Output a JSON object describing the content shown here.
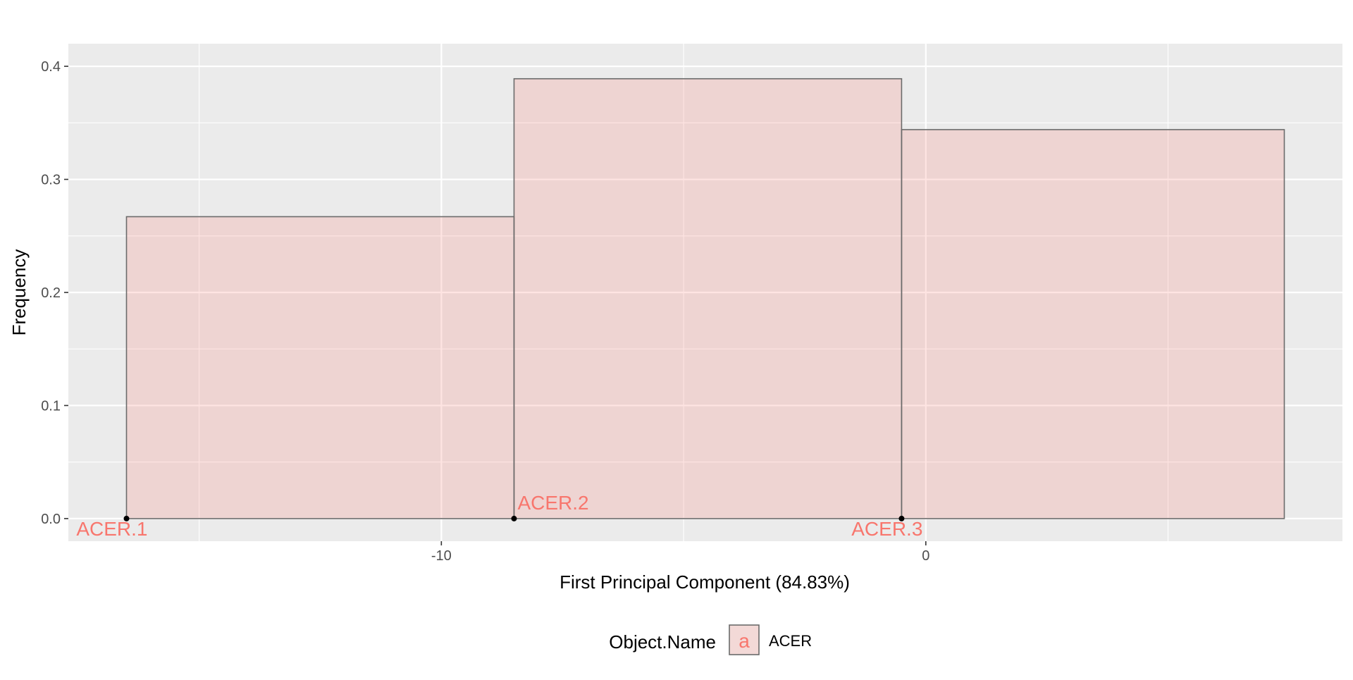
{
  "chart_data": {
    "type": "bar",
    "subtype": "histogram",
    "xlabel": "First Principal Component (84.83%)",
    "ylabel": "Frequency",
    "xlim": [
      -17.7,
      8.6
    ],
    "ylim": [
      -0.02,
      0.42
    ],
    "x_ticks": [
      {
        "value": -10,
        "label": "-10"
      },
      {
        "value": 0,
        "label": "0"
      }
    ],
    "x_minor_ticks": [
      -15,
      -5,
      5
    ],
    "y_ticks": [
      {
        "value": 0.0,
        "label": "0.0"
      },
      {
        "value": 0.1,
        "label": "0.1"
      },
      {
        "value": 0.2,
        "label": "0.2"
      },
      {
        "value": 0.3,
        "label": "0.3"
      },
      {
        "value": 0.4,
        "label": "0.4"
      }
    ],
    "y_minor_ticks": [
      0.05,
      0.15,
      0.25,
      0.35
    ],
    "bins": [
      {
        "x0": -16.5,
        "x1": -8.5,
        "value": 0.267
      },
      {
        "x0": -8.5,
        "x1": -0.5,
        "value": 0.389
      },
      {
        "x0": -0.5,
        "x1": 7.4,
        "value": 0.344
      }
    ],
    "points": [
      {
        "label": "ACER.1",
        "x": -16.5,
        "y": 0.0,
        "label_pos": "below-left"
      },
      {
        "label": "ACER.2",
        "x": -8.5,
        "y": 0.0,
        "label_pos": "above-right"
      },
      {
        "label": "ACER.3",
        "x": -0.5,
        "y": 0.0,
        "label_pos": "below-left"
      }
    ],
    "legend": {
      "title": "Object.Name",
      "key_glyph": "a",
      "entries": [
        {
          "name": "ACER"
        }
      ],
      "position": "bottom"
    },
    "colors": {
      "panel_bg": "#ebebeb",
      "grid": "#ffffff",
      "bar_fill": "#f8766d",
      "bar_fill_opacity": 0.2,
      "bar_stroke": "#6b6b6b",
      "label_color": "#f8766d",
      "point_color": "#000000",
      "axis_text": "#4d4d4d",
      "title_text": "#000000"
    }
  }
}
